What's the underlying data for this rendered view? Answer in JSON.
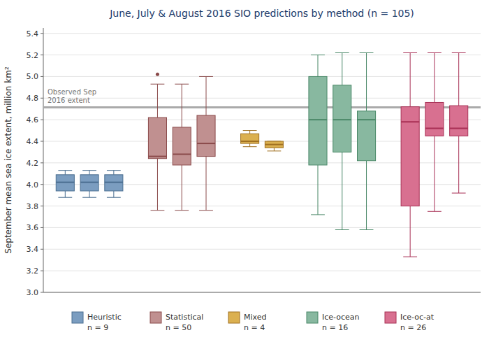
{
  "chart_data": {
    "type": "box",
    "title": "June, July & August 2016 SIO predictions by method (n = 105)",
    "ylabel": "September mean sea ice extent, million km²",
    "ylim": [
      3.0,
      5.45
    ],
    "yticks": [
      {
        "value": 3.0,
        "label": "3.0"
      },
      3.2,
      3.4,
      3.6,
      3.8,
      {
        "value": 4.0,
        "label": "4.0"
      },
      4.2,
      4.4,
      4.6,
      4.8,
      {
        "value": 5.0,
        "label": "5.0"
      },
      5.2,
      5.4
    ],
    "grid": true,
    "legend": "bottom",
    "annotations": [
      {
        "label": "Observed Sep\n2016 extent",
        "value": 4.715,
        "color": "#aaaaaa"
      }
    ],
    "series": [
      {
        "name": "Heuristic",
        "n": {
          "value": 9,
          "label": "n = 9"
        },
        "color": "#7b9dc0",
        "edge_color": "#4a6e90",
        "boxes": [
          {
            "whislo": 3.88,
            "q1": 3.94,
            "med": 4.02,
            "q3": 4.09,
            "whishi": 4.13,
            "fliers": []
          },
          {
            "whislo": 3.88,
            "q1": 3.94,
            "med": 4.02,
            "q3": 4.09,
            "whishi": 4.13,
            "fliers": []
          },
          {
            "whislo": 3.88,
            "q1": 3.94,
            "med": 4.02,
            "q3": 4.09,
            "whishi": 4.13,
            "fliers": []
          }
        ]
      },
      {
        "name": "Statistical",
        "n": {
          "value": 50,
          "label": "n = 50"
        },
        "color": "#c09090",
        "edge_color": "#8a4a4a",
        "boxes": [
          {
            "whislo": 3.76,
            "q1": 4.24,
            "med": 4.26,
            "q3": 4.62,
            "whishi": 4.93,
            "fliers": [
              5.02
            ]
          },
          {
            "whislo": 3.76,
            "q1": 4.18,
            "med": 4.28,
            "q3": 4.53,
            "whishi": 4.93,
            "fliers": []
          },
          {
            "whislo": 3.76,
            "q1": 4.26,
            "med": 4.38,
            "q3": 4.64,
            "whishi": 5.0,
            "fliers": []
          }
        ]
      },
      {
        "name": "Mixed",
        "n": {
          "value": 4,
          "label": "n = 4"
        },
        "color": "#dbb050",
        "edge_color": "#a07020",
        "boxes": [
          {
            "whislo": 4.35,
            "q1": 4.38,
            "med": 4.4,
            "q3": 4.47,
            "whishi": 4.5,
            "fliers": []
          },
          {
            "whislo": 4.31,
            "q1": 4.34,
            "med": 4.37,
            "q3": 4.4,
            "whishi": 4.4,
            "fliers": []
          }
        ]
      },
      {
        "name": "Ice-ocean",
        "n": {
          "value": 16,
          "label": "n = 16"
        },
        "color": "#88b8a0",
        "edge_color": "#4a8868",
        "boxes": [
          {
            "whislo": 3.72,
            "q1": 4.18,
            "med": 4.6,
            "q3": 5.0,
            "whishi": 5.2,
            "fliers": []
          },
          {
            "whislo": 3.58,
            "q1": 4.3,
            "med": 4.6,
            "q3": 4.92,
            "whishi": 5.22,
            "fliers": []
          },
          {
            "whislo": 3.58,
            "q1": 4.22,
            "med": 4.6,
            "q3": 4.68,
            "whishi": 5.22,
            "fliers": []
          }
        ]
      },
      {
        "name": "Ice-oc-at",
        "n": {
          "value": 26,
          "label": "n = 26"
        },
        "color": "#d87090",
        "edge_color": "#a83055",
        "boxes": [
          {
            "whislo": 3.33,
            "q1": 3.8,
            "med": 4.58,
            "q3": 4.72,
            "whishi": 5.22,
            "fliers": []
          },
          {
            "whislo": 3.75,
            "q1": 4.45,
            "med": 4.52,
            "q3": 4.76,
            "whishi": 5.22,
            "fliers": []
          },
          {
            "whislo": 3.92,
            "q1": 4.45,
            "med": 4.52,
            "q3": 4.73,
            "whishi": 5.22,
            "fliers": []
          }
        ]
      }
    ]
  }
}
